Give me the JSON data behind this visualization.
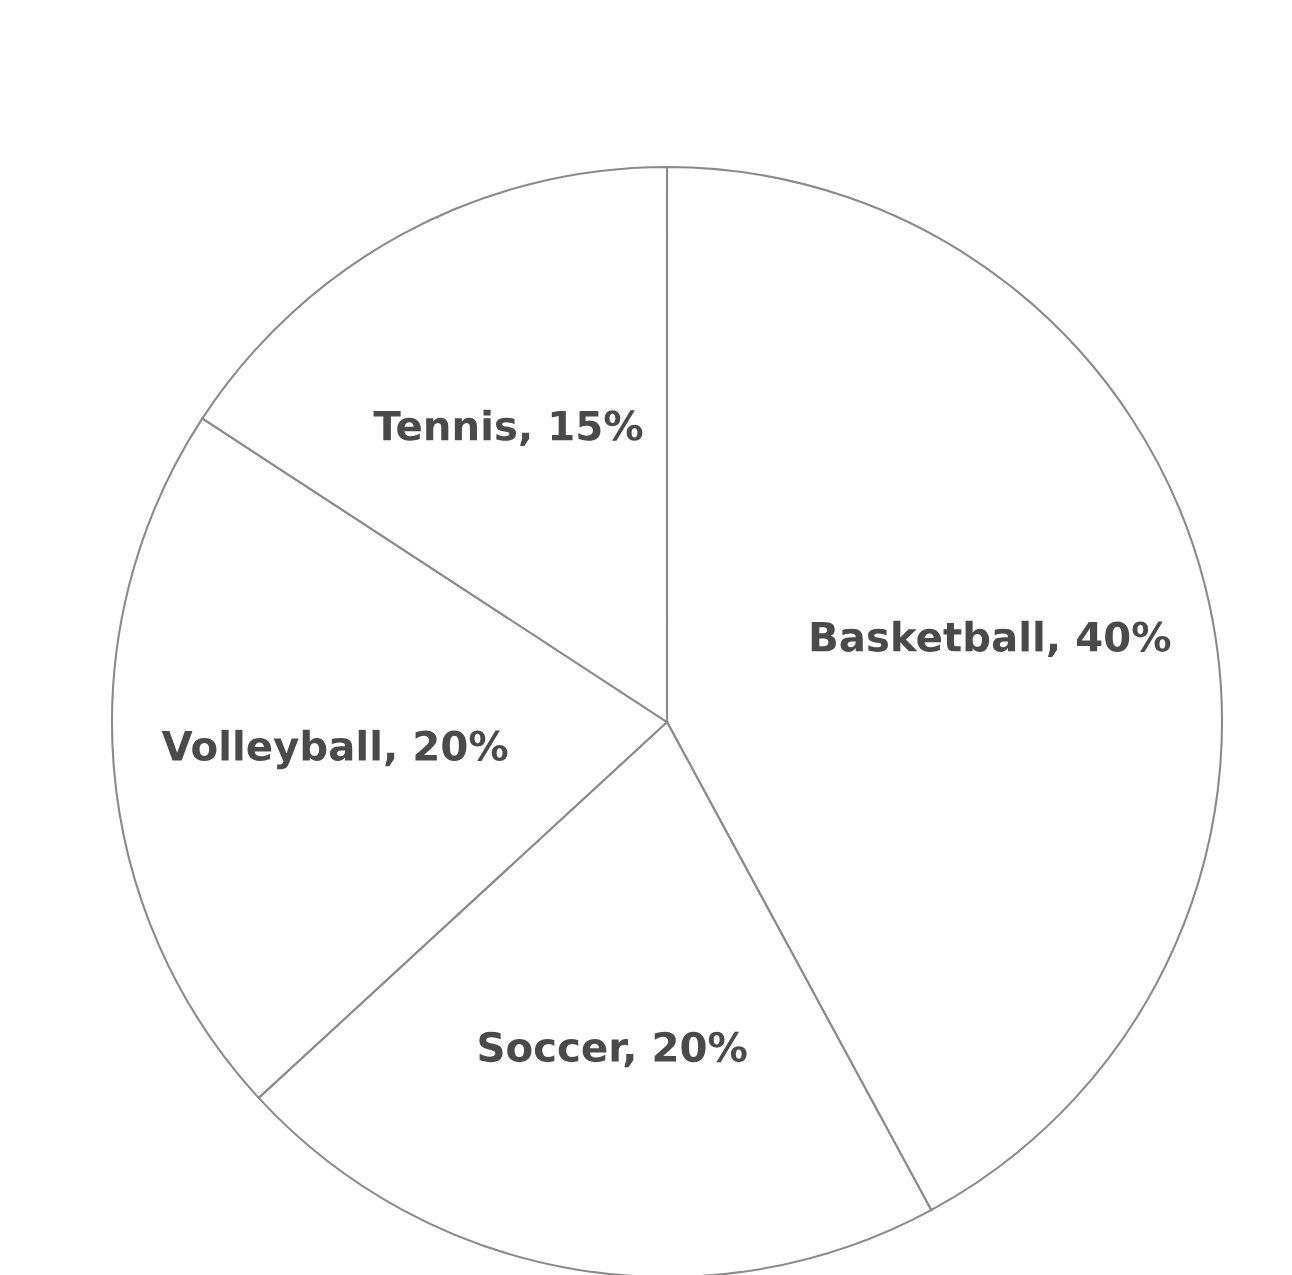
{
  "chart_data": {
    "type": "pie",
    "categories": [
      "Basketball",
      "Soccer",
      "Volleyball",
      "Tennis"
    ],
    "values": [
      40,
      20,
      20,
      15
    ],
    "value_labels": [
      "40%",
      "20%",
      "20%",
      "15%"
    ],
    "colors": [
      "#ffffff",
      "#ffffff",
      "#ffffff",
      "#ffffff"
    ]
  }
}
